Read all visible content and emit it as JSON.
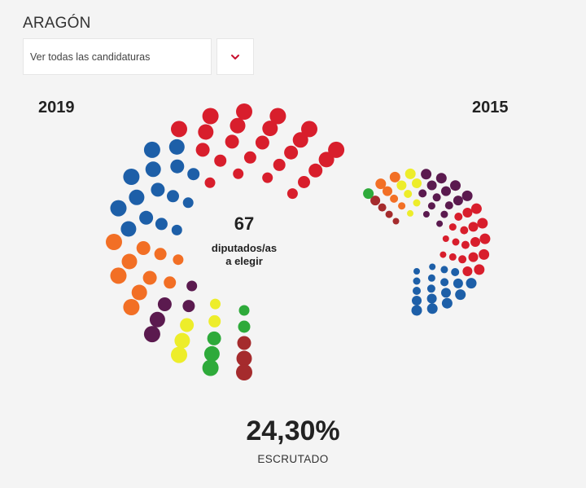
{
  "header": {
    "region": "ARAGÓN",
    "select_label": "Ver todas las candidaturas",
    "toggle_icon": "chevron-down-icon"
  },
  "center": {
    "seats_total": "67",
    "line1": "diputados/as",
    "line2": "a elegir"
  },
  "scrutiny": {
    "percent": "24,30%",
    "label": "ESCRUTADO"
  },
  "chart_data": [
    {
      "type": "hemicycle",
      "title": "2019",
      "seats_total": 67,
      "series": [
        {
          "color": "#d81e2c",
          "seats": 24
        },
        {
          "color": "#1d5fa8",
          "seats": 15
        },
        {
          "color": "#f26f25",
          "seats": 10
        },
        {
          "color": "#5b1a4f",
          "seats": 5
        },
        {
          "color": "#eded2a",
          "seats": 5
        },
        {
          "color": "#2eaa3a",
          "seats": 5
        },
        {
          "color": "#a52b2d",
          "seats": 3
        }
      ]
    },
    {
      "type": "hemicycle",
      "title": "2015",
      "seats_total": 67,
      "series": [
        {
          "color": "#1d5fa8",
          "seats": 18
        },
        {
          "color": "#d81e2c",
          "seats": 19
        },
        {
          "color": "#5b1a4f",
          "seats": 14
        },
        {
          "color": "#eded2a",
          "seats": 6
        },
        {
          "color": "#f26f25",
          "seats": 5
        },
        {
          "color": "#a52b2d",
          "seats": 4
        },
        {
          "color": "#2eaa3a",
          "seats": 1
        }
      ]
    }
  ]
}
